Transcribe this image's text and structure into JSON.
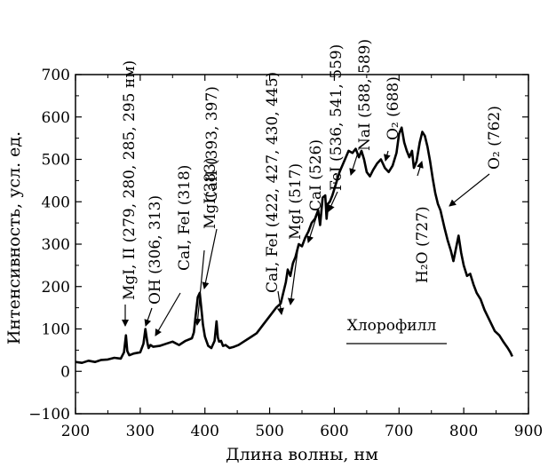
{
  "chart_data": {
    "type": "line",
    "xlabel": "Длина волны, нм",
    "ylabel": "Интенсивность, усл. ед.",
    "xlim": [
      200,
      900
    ],
    "ylim": [
      -100,
      700
    ],
    "grid": false,
    "x_ticks": [
      200,
      300,
      400,
      500,
      600,
      700,
      800,
      900
    ],
    "y_ticks": [
      -100,
      0,
      100,
      200,
      300,
      400,
      500,
      600,
      700
    ],
    "series": [
      {
        "x": [
          200,
          210,
          220,
          230,
          240,
          250,
          260,
          270,
          275,
          278,
          280,
          283,
          290,
          300,
          305,
          308,
          311,
          313,
          316,
          320,
          330,
          340,
          350,
          360,
          370,
          380,
          383,
          386,
          389,
          392,
          395,
          397,
          400,
          405,
          410,
          415,
          418,
          420,
          422,
          425,
          428,
          432,
          438,
          445,
          452,
          460,
          470,
          480,
          490,
          500,
          510,
          517,
          520,
          525,
          528,
          532,
          536,
          540,
          545,
          550,
          555,
          560,
          565,
          570,
          575,
          578,
          582,
          586,
          588,
          590,
          593,
          597,
          602,
          608,
          615,
          622,
          628,
          633,
          638,
          642,
          646,
          650,
          655,
          660,
          666,
          672,
          678,
          684,
          690,
          696,
          700,
          704,
          708,
          712,
          716,
          720,
          723,
          727,
          732,
          736,
          740,
          744,
          748,
          752,
          756,
          760,
          764,
          770,
          775,
          780,
          784,
          788,
          792,
          796,
          800,
          805,
          810,
          815,
          820,
          826,
          832,
          840,
          848,
          855,
          862,
          868,
          872,
          875
        ],
        "y": [
          22,
          20,
          25,
          22,
          27,
          28,
          32,
          30,
          45,
          85,
          48,
          38,
          42,
          45,
          65,
          100,
          68,
          55,
          62,
          58,
          60,
          65,
          70,
          62,
          72,
          78,
          92,
          135,
          175,
          185,
          140,
          110,
          82,
          60,
          55,
          72,
          118,
          80,
          70,
          72,
          60,
          62,
          55,
          58,
          62,
          70,
          80,
          90,
          110,
          130,
          150,
          160,
          178,
          210,
          240,
          225,
          255,
          270,
          300,
          295,
          315,
          330,
          350,
          360,
          380,
          345,
          410,
          415,
          360,
          395,
          400,
          415,
          440,
          470,
          495,
          520,
          515,
          525,
          505,
          520,
          500,
          470,
          460,
          475,
          490,
          500,
          480,
          470,
          485,
          515,
          560,
          575,
          540,
          520,
          505,
          520,
          480,
          495,
          540,
          565,
          555,
          530,
          495,
          455,
          420,
          395,
          380,
          340,
          310,
          285,
          260,
          290,
          320,
          280,
          250,
          225,
          230,
          205,
          185,
          170,
          145,
          120,
          95,
          85,
          68,
          55,
          45,
          35
        ]
      }
    ],
    "annotations": [
      "MgI, II (279, 280, 285, 295 нм)",
      "OH (306, 313)",
      "CaI, FeI (318)",
      "MgI(383)",
      "CaII (393, 397)",
      "CaI, FeI (422, 427, 430, 445)",
      "MgI (517)",
      "CaI (526)",
      "FeI (536, 541, 559)",
      "NaI (588, 589)",
      "O₂ (688)",
      "H₂O (727)",
      "O₂ (762)",
      "Хлорофилл"
    ]
  }
}
